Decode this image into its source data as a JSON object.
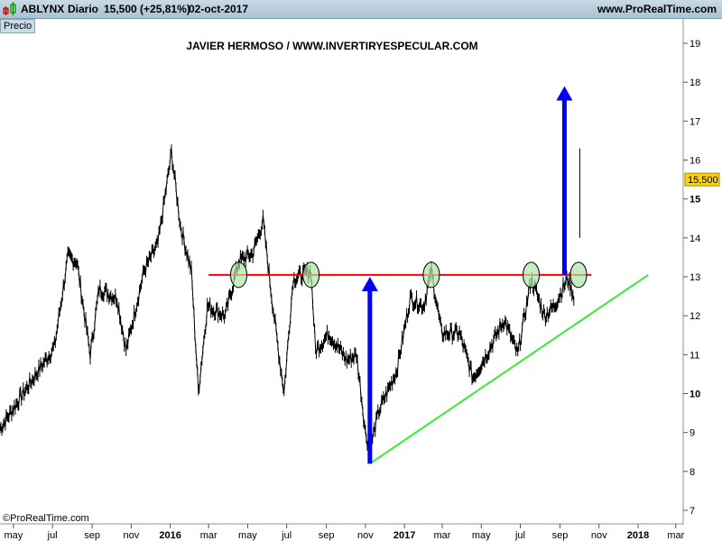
{
  "header": {
    "symbol": "ABLYNX",
    "period": "Diario",
    "price": "15,500 (+25,81%)",
    "date": "02-oct-2017",
    "site": "www.ProRealTime.com"
  },
  "panel_label": "Precio",
  "copyright": "©ProRealTime.com",
  "chart_data": {
    "type": "line",
    "title": "JAVIER HERMOSO / WWW.INVERTIRYESPECULAR.COM",
    "ylim": [
      7,
      19
    ],
    "yticks": [
      7,
      8,
      9,
      10,
      11,
      12,
      13,
      14,
      15,
      16,
      17,
      18,
      19
    ],
    "bold_yticks": [
      10,
      15
    ],
    "xlim": [
      "2015-04-10",
      "2018-03-30"
    ],
    "xticks": [
      {
        "date": "2015-05-01",
        "label": "may"
      },
      {
        "date": "2015-07-01",
        "label": "jul"
      },
      {
        "date": "2015-09-01",
        "label": "sep"
      },
      {
        "date": "2015-11-01",
        "label": "nov"
      },
      {
        "date": "2016-01-01",
        "label": "2016",
        "bold": true
      },
      {
        "date": "2016-03-01",
        "label": "mar"
      },
      {
        "date": "2016-05-01",
        "label": "may"
      },
      {
        "date": "2016-07-01",
        "label": "jul"
      },
      {
        "date": "2016-09-01",
        "label": "sep"
      },
      {
        "date": "2016-11-01",
        "label": "nov"
      },
      {
        "date": "2017-01-01",
        "label": "2017",
        "bold": true
      },
      {
        "date": "2017-03-01",
        "label": "mar"
      },
      {
        "date": "2017-05-01",
        "label": "may"
      },
      {
        "date": "2017-07-01",
        "label": "jul"
      },
      {
        "date": "2017-09-01",
        "label": "sep"
      },
      {
        "date": "2017-11-01",
        "label": "nov"
      },
      {
        "date": "2018-01-01",
        "label": "2018",
        "bold": true
      },
      {
        "date": "2018-03-01",
        "label": "mar"
      }
    ],
    "last_price_label": "15,500",
    "last_price": 15.5,
    "series": [
      {
        "color": "#000000",
        "points": [
          [
            "2015-04-10",
            9.1
          ],
          [
            "2015-05-22",
            10.15
          ],
          [
            "2015-07-04",
            11.2
          ],
          [
            "2015-07-25",
            13.5
          ],
          [
            "2015-08-08",
            13.4
          ],
          [
            "2015-08-29",
            11.0
          ],
          [
            "2015-09-12",
            12.7
          ],
          [
            "2015-10-10",
            12.45
          ],
          [
            "2015-10-24",
            11.1
          ],
          [
            "2015-11-21",
            13.15
          ],
          [
            "2015-12-13",
            13.85
          ],
          [
            "2016-01-03",
            16.2
          ],
          [
            "2016-01-17",
            14.3
          ],
          [
            "2016-02-03",
            13.15
          ],
          [
            "2016-02-14",
            10.05
          ],
          [
            "2016-02-28",
            12.25
          ],
          [
            "2016-03-27",
            12.0
          ],
          [
            "2016-04-17",
            13.4
          ],
          [
            "2016-05-09",
            13.6
          ],
          [
            "2016-05-25",
            14.45
          ],
          [
            "2016-06-06",
            12.7
          ],
          [
            "2016-06-20",
            10.85
          ],
          [
            "2016-06-27",
            10.05
          ],
          [
            "2016-07-11",
            12.95
          ],
          [
            "2016-08-08",
            13.15
          ],
          [
            "2016-08-15",
            11.1
          ],
          [
            "2016-09-05",
            11.55
          ],
          [
            "2016-10-03",
            10.85
          ],
          [
            "2016-10-18",
            11.0
          ],
          [
            "2016-10-25",
            10.05
          ],
          [
            "2016-11-01",
            9.0
          ],
          [
            "2016-11-08",
            8.55
          ],
          [
            "2016-11-22",
            9.55
          ],
          [
            "2016-12-20",
            10.6
          ],
          [
            "2017-01-10",
            12.45
          ],
          [
            "2017-01-31",
            12.25
          ],
          [
            "2017-02-12",
            13.15
          ],
          [
            "2017-02-28",
            11.55
          ],
          [
            "2017-03-28",
            11.55
          ],
          [
            "2017-04-18",
            10.4
          ],
          [
            "2017-05-09",
            11.0
          ],
          [
            "2017-06-06",
            11.9
          ],
          [
            "2017-06-27",
            11.0
          ],
          [
            "2017-07-18",
            12.95
          ],
          [
            "2017-08-08",
            12.0
          ],
          [
            "2017-08-23",
            12.25
          ],
          [
            "2017-09-13",
            12.95
          ],
          [
            "2017-09-24",
            12.45
          ]
        ]
      }
    ],
    "last_bar": {
      "date": "2017-10-02",
      "high": 16.3,
      "low": 14.0,
      "close": 15.5
    },
    "annotations": {
      "resistance": {
        "color": "#ff0000",
        "value": 13.05,
        "from": "2016-03-01",
        "to": "2017-10-20"
      },
      "trendline": {
        "color": "#33ee33",
        "from": [
          "2016-11-08",
          8.2
        ],
        "to": [
          "2018-01-17",
          13.05
        ]
      },
      "arrows": [
        {
          "color": "#0000ff",
          "date": "2016-11-08",
          "from": 8.2,
          "to": 13.0
        },
        {
          "color": "#0000ff",
          "date": "2017-09-08",
          "from": 13.05,
          "to": 17.9
        }
      ],
      "circles": {
        "color": "#aee6a6",
        "value": 13.05,
        "dates": [
          "2016-04-17",
          "2016-08-08",
          "2017-02-12",
          "2017-07-18",
          "2017-09-30"
        ]
      }
    }
  }
}
